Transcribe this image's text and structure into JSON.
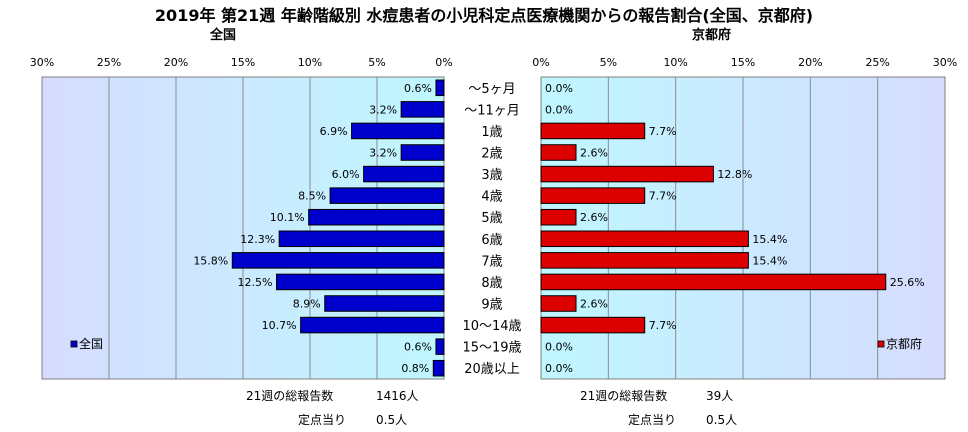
{
  "title": "2019年 第21週 年齢階級別 水痘患者の小児科定点医療機関からの報告割合(全国、京都府)",
  "chart_data": {
    "type": "bar",
    "orientation": "horizontal",
    "categories": [
      "～5ヶ月",
      "～11ヶ月",
      "1歳",
      "2歳",
      "3歳",
      "4歳",
      "5歳",
      "6歳",
      "7歳",
      "8歳",
      "9歳",
      "10～14歳",
      "15～19歳",
      "20歳以上"
    ],
    "panels": [
      {
        "title": "全国",
        "series_name": "全国",
        "values": [
          0.6,
          3.2,
          6.9,
          3.2,
          6.0,
          8.5,
          10.1,
          12.3,
          15.8,
          12.5,
          8.9,
          10.7,
          0.6,
          0.8
        ],
        "value_labels": [
          "0.6%",
          "3.2%",
          "6.9%",
          "3.2%",
          "6.0%",
          "8.5%",
          "10.1%",
          "12.3%",
          "15.8%",
          "12.5%",
          "8.9%",
          "10.7%",
          "0.6%",
          "0.8%"
        ],
        "xlim": [
          0,
          30
        ],
        "ticks": [
          "0%",
          "5%",
          "10%",
          "15%",
          "20%",
          "25%",
          "30%"
        ],
        "direction": "reversed",
        "bar_color": "#0000cc",
        "legend_position": "left",
        "footer_total_label": "21週の総報告数",
        "footer_total_value": "1416人",
        "footer_per_label": "定点当り",
        "footer_per_value": "0.5人"
      },
      {
        "title": "京都府",
        "series_name": "京都府",
        "values": [
          0.0,
          0.0,
          7.7,
          2.6,
          12.8,
          7.7,
          2.6,
          15.4,
          15.4,
          25.6,
          2.6,
          7.7,
          0.0,
          0.0
        ],
        "value_labels": [
          "0.0%",
          "0.0%",
          "7.7%",
          "2.6%",
          "12.8%",
          "7.7%",
          "2.6%",
          "15.4%",
          "15.4%",
          "25.6%",
          "2.6%",
          "7.7%",
          "0.0%",
          "0.0%"
        ],
        "xlim": [
          0,
          30
        ],
        "ticks": [
          "0%",
          "5%",
          "10%",
          "15%",
          "20%",
          "25%",
          "30%"
        ],
        "direction": "normal",
        "bar_color": "#dd0000",
        "legend_position": "right",
        "footer_total_label": "21週の総報告数",
        "footer_total_value": "39人",
        "footer_per_label": "定点当り",
        "footer_per_value": "0.5人"
      }
    ],
    "grid": "vertical",
    "plot_background": "gradient light-blue"
  }
}
